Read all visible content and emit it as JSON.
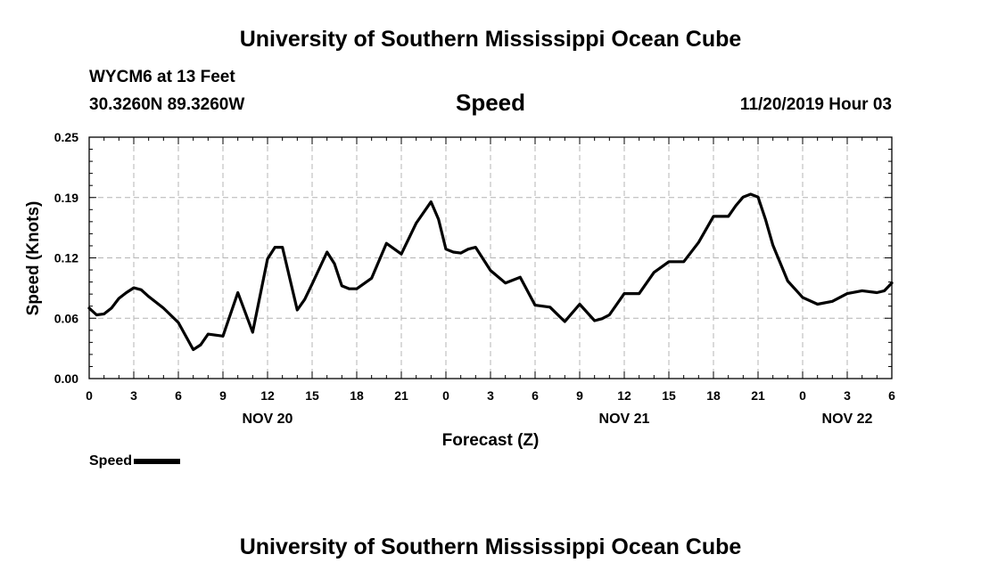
{
  "header": {
    "title": "University of Southern Mississippi Ocean Cube",
    "station": "WYCM6 at 13 Feet",
    "coords": "30.3260N 89.3260W",
    "issue_time": "11/20/2019 Hour 03"
  },
  "footer": {
    "title": "University of Southern Mississippi Ocean Cube"
  },
  "legend": {
    "label": "Speed"
  },
  "colors": {
    "line": "#000000",
    "grid": "#b4b4b4"
  },
  "chart_data": {
    "type": "line",
    "title": "Speed",
    "xlabel": "Forecast (Z)",
    "ylabel": "Speed (Knots)",
    "xlim": [
      0,
      54
    ],
    "ylim": [
      0,
      0.25
    ],
    "grid": true,
    "legend_position": "bottom-left",
    "y_ticks": [
      "0.00",
      "0.06",
      "0.12",
      "0.19",
      "0.25"
    ],
    "x_ticks": [
      {
        "x": 0,
        "label": "0"
      },
      {
        "x": 3,
        "label": "3"
      },
      {
        "x": 6,
        "label": "6"
      },
      {
        "x": 9,
        "label": "9"
      },
      {
        "x": 12,
        "label": "12"
      },
      {
        "x": 15,
        "label": "15"
      },
      {
        "x": 18,
        "label": "18"
      },
      {
        "x": 21,
        "label": "21"
      },
      {
        "x": 24,
        "label": "0"
      },
      {
        "x": 27,
        "label": "3"
      },
      {
        "x": 30,
        "label": "6"
      },
      {
        "x": 33,
        "label": "9"
      },
      {
        "x": 36,
        "label": "12"
      },
      {
        "x": 39,
        "label": "15"
      },
      {
        "x": 42,
        "label": "18"
      },
      {
        "x": 45,
        "label": "21"
      },
      {
        "x": 48,
        "label": "0"
      },
      {
        "x": 51,
        "label": "3"
      },
      {
        "x": 54,
        "label": "6"
      }
    ],
    "date_labels": [
      {
        "x": 12,
        "label": "NOV 20"
      },
      {
        "x": 36,
        "label": "NOV 21"
      },
      {
        "x": 51,
        "label": "NOV 22"
      }
    ],
    "series": [
      {
        "name": "Speed",
        "x": [
          0,
          0.5,
          1,
          1.5,
          2,
          2.5,
          3,
          3.5,
          4,
          5,
          6,
          7,
          7.5,
          8,
          9,
          10,
          11,
          12,
          12.5,
          13,
          14,
          14.5,
          15,
          16,
          16.5,
          17,
          17.5,
          18,
          19,
          20,
          21,
          22,
          23,
          23.5,
          24,
          24.5,
          25,
          25.5,
          26,
          27,
          28,
          29,
          30,
          31,
          32,
          33,
          34,
          34.5,
          35,
          36,
          37,
          38,
          39,
          40,
          41,
          42,
          43,
          43.5,
          44,
          44.5,
          45,
          45.5,
          46,
          47,
          48,
          49,
          50,
          51,
          52,
          53,
          53.5,
          54
        ],
        "values": [
          0.073,
          0.066,
          0.067,
          0.073,
          0.083,
          0.089,
          0.094,
          0.092,
          0.085,
          0.073,
          0.058,
          0.03,
          0.035,
          0.046,
          0.044,
          0.089,
          0.048,
          0.124,
          0.136,
          0.136,
          0.071,
          0.082,
          0.098,
          0.131,
          0.119,
          0.096,
          0.093,
          0.093,
          0.104,
          0.14,
          0.129,
          0.161,
          0.183,
          0.165,
          0.134,
          0.131,
          0.13,
          0.134,
          0.136,
          0.112,
          0.099,
          0.105,
          0.076,
          0.074,
          0.059,
          0.077,
          0.06,
          0.062,
          0.066,
          0.088,
          0.088,
          0.11,
          0.121,
          0.121,
          0.141,
          0.168,
          0.168,
          0.179,
          0.188,
          0.191,
          0.188,
          0.165,
          0.138,
          0.101,
          0.084,
          0.077,
          0.08,
          0.088,
          0.091,
          0.089,
          0.091,
          0.099
        ]
      }
    ]
  }
}
